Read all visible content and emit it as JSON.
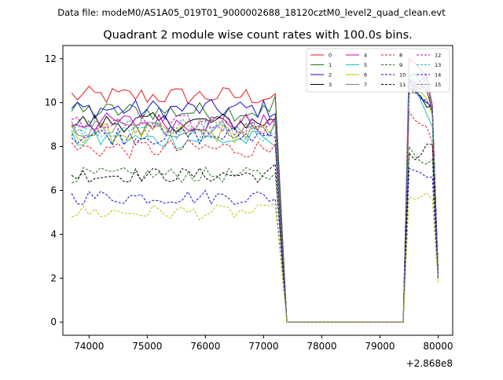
{
  "suptitle": "Data file: modeM0/AS1A05_019T01_9000002688_18120cztM0_level2_quad_clean.evt",
  "chart_data": {
    "type": "line",
    "title": "Quadrant 2 module wise count rates with 100.0s bins.",
    "xlabel": "",
    "ylabel": "",
    "x_offset_label": "+2.868e8",
    "xlim": [
      73550,
      80250
    ],
    "ylim": [
      -0.6,
      12.6
    ],
    "xticks": [
      74000,
      75000,
      76000,
      77000,
      78000,
      79000,
      80000
    ],
    "xtick_labels": [
      "74000",
      "75000",
      "76000",
      "77000",
      "78000",
      "79000",
      "80000"
    ],
    "yticks": [
      0,
      2,
      4,
      6,
      8,
      10,
      12
    ],
    "ytick_labels": [
      "0",
      "2",
      "4",
      "6",
      "8",
      "10",
      "12"
    ],
    "grid": false,
    "legend_position": "top-right",
    "legend_columns": 4,
    "bins_start": 73700,
    "bin_width": 100,
    "series": [
      {
        "name": "0",
        "color": "#e41a1c",
        "style": "solid",
        "level": 10.3,
        "pre_end": 10.4,
        "post": [
          12.0,
          11.8,
          11.5,
          11.2,
          9.9
        ],
        "tail": 2.0
      },
      {
        "name": "1",
        "color": "#1a7a1a",
        "style": "solid",
        "level": 9.6,
        "pre_end": 10.3,
        "post": [
          11.2,
          11.3,
          10.9,
          10.6,
          9.6
        ],
        "tail": 2.3
      },
      {
        "name": "2",
        "color": "#1010d0",
        "style": "solid",
        "level": 9.7,
        "pre_end": 9.5,
        "post": [
          11.0,
          10.6,
          10.2,
          10.0,
          9.8
        ],
        "tail": 2.2
      },
      {
        "name": "3",
        "color": "#000000",
        "style": "solid",
        "level": 9.1,
        "pre_end": 9.2,
        "post": [
          10.7,
          10.5,
          10.3,
          9.8,
          9.8
        ],
        "tail": 2.2
      },
      {
        "name": "4",
        "color": "#c000c0",
        "style": "solid",
        "level": 9.1,
        "pre_end": 9.3,
        "post": [
          11.1,
          10.8,
          10.6,
          11.2,
          9.5
        ],
        "tail": 2.1
      },
      {
        "name": "5",
        "color": "#20c0c0",
        "style": "solid",
        "level": 8.3,
        "pre_end": 8.0,
        "post": [
          11.4,
          10.9,
          10.1,
          9.5,
          8.9
        ],
        "tail": 2.0
      },
      {
        "name": "6",
        "color": "#c0c000",
        "style": "solid",
        "level": 8.6,
        "pre_end": 9.0,
        "post": [
          10.7,
          10.4,
          10.5,
          10.2,
          9.4
        ],
        "tail": 2.1
      },
      {
        "name": "7",
        "color": "#808080",
        "style": "solid",
        "level": 8.8,
        "pre_end": 9.2,
        "post": [
          11.0,
          10.9,
          11.0,
          11.3,
          9.6
        ],
        "tail": 2.2
      },
      {
        "name": "8",
        "color": "#e41a1c",
        "style": "dashed",
        "level": 7.9,
        "pre_end": 8.1,
        "post": [
          9.6,
          9.2,
          9.0,
          8.9,
          8.2
        ],
        "tail": 2.0
      },
      {
        "name": "9",
        "color": "#1a7a1a",
        "style": "dashed",
        "level": 6.7,
        "pre_end": 6.8,
        "post": [
          8.0,
          7.6,
          7.3,
          7.2,
          7.4
        ],
        "tail": 1.9
      },
      {
        "name": "10",
        "color": "#1010d0",
        "style": "dashed",
        "level": 5.7,
        "pre_end": 5.6,
        "post": [
          7.0,
          6.9,
          6.8,
          6.6,
          6.6
        ],
        "tail": 1.9
      },
      {
        "name": "11",
        "color": "#000000",
        "style": "dashed",
        "level": 6.7,
        "pre_end": 7.2,
        "post": [
          7.7,
          7.4,
          7.6,
          8.1,
          8.1
        ],
        "tail": 2.0
      },
      {
        "name": "12",
        "color": "#c000c0",
        "style": "dashed",
        "level": 9.0,
        "pre_end": 9.1,
        "post": [
          10.9,
          10.5,
          10.8,
          10.5,
          9.9
        ],
        "tail": 2.1
      },
      {
        "name": "13",
        "color": "#20c0c0",
        "style": "dashed",
        "level": 8.7,
        "pre_end": 8.6,
        "post": [
          11.0,
          10.7,
          11.2,
          11.0,
          9.8
        ],
        "tail": 2.0
      },
      {
        "name": "14",
        "color": "#1010d0",
        "style": "dashed",
        "level": 8.5,
        "pre_end": 8.4,
        "post": [
          10.4,
          10.5,
          10.2,
          10.1,
          9.6
        ],
        "tail": 2.0
      },
      {
        "name": "15",
        "color": "#808080",
        "style": "dashed",
        "level": 8.9,
        "pre_end": 9.0,
        "post": [
          10.5,
          10.7,
          10.8,
          11.4,
          9.7
        ],
        "tail": 2.1
      }
    ],
    "extra_series_style": {
      "name": "",
      "color": "#c0c000",
      "style": "dashed",
      "level": 5.0,
      "pre_end": 5.4,
      "post": [
        5.7,
        5.6,
        5.7,
        5.9,
        5.6
      ],
      "tail": 1.8
    }
  }
}
